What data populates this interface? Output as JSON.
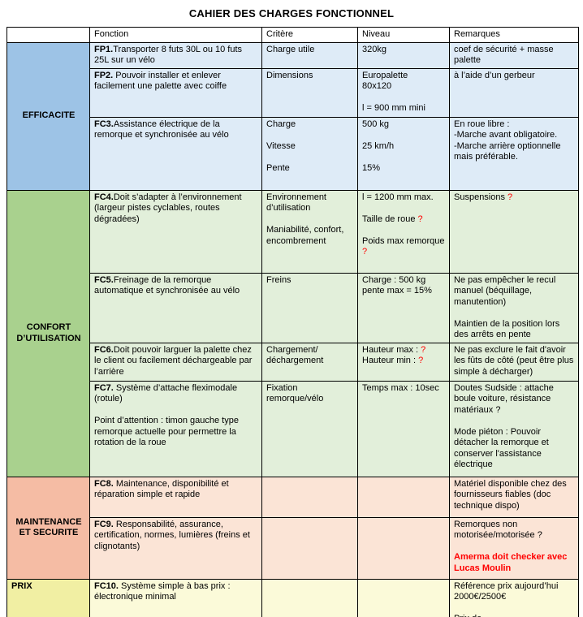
{
  "title": "CAHIER DES CHARGES FONCTIONNEL",
  "colors": {
    "alert_red": "#FF0000",
    "border": "#000000",
    "efficacite": {
      "category": "#9DC3E6",
      "cell": "#DEEBF7"
    },
    "confort": {
      "category": "#A9D18E",
      "cell": "#E2EFDA"
    },
    "maintenance": {
      "category": "#F5BCA4",
      "cell": "#FBE4D6"
    },
    "prix": {
      "category": "#F1EFA3",
      "cell": "#FBFAD9"
    }
  },
  "table": {
    "headers": [
      "",
      "Fonction",
      "Critère",
      "Niveau",
      "Remarques"
    ],
    "sections": [
      {
        "key": "efficacite",
        "category": "EFFICACITE",
        "rows": [
          {
            "fonction": [
              {
                "text": "FP1.",
                "bold": true
              },
              {
                "text": "Transporter 8 futs 30L ou 10 futs 25L sur un vélo"
              }
            ],
            "critere": [
              {
                "text": "Charge utile"
              }
            ],
            "niveau": [
              {
                "text": "320kg"
              }
            ],
            "remarques": [
              {
                "text": "coef de sécurité + masse palette"
              }
            ]
          },
          {
            "fonction": [
              {
                "text": "FP2.",
                "bold": true
              },
              {
                "text": " Pouvoir installer et enlever facilement une palette avec coiffe"
              }
            ],
            "critere": [
              {
                "text": "Dimensions"
              }
            ],
            "niveau": [
              {
                "text": "Europalette\n80x120\n\nl = 900 mm mini"
              }
            ],
            "remarques": [
              {
                "text": "à l’aide d’un gerbeur"
              }
            ]
          },
          {
            "fonction": [
              {
                "text": "FC3.",
                "bold": true
              },
              {
                "text": "Assistance électrique de la remorque et synchronisée au vélo"
              }
            ],
            "critere": [
              {
                "text": "Charge\n\nVitesse\n\nPente"
              }
            ],
            "niveau": [
              {
                "text": "500 kg\n\n25 km/h\n\n15%"
              }
            ],
            "remarques": [
              {
                "text": "En roue libre :\n-Marche avant obligatoire.\n-Marche arrière optionnelle mais préférable."
              }
            ]
          }
        ]
      },
      {
        "key": "confort",
        "category": "CONFORT D’UTILISATION",
        "rows": [
          {
            "fonction": [
              {
                "text": "FC4.",
                "bold": true
              },
              {
                "text": "Doit s’adapter à l’environnement (largeur pistes cyclables, routes dégradées)"
              }
            ],
            "critere": [
              {
                "text": "Environnement d’utilisation\n\nManiabilité, confort, encombrement"
              }
            ],
            "niveau": [
              {
                "text": "l = 1200 mm max.\n\nTaille de roue "
              },
              {
                "text": "?",
                "red": true
              },
              {
                "text": "\n\nPoids max remorque "
              },
              {
                "text": "?",
                "red": true
              }
            ],
            "remarques": [
              {
                "text": "Suspensions "
              },
              {
                "text": "?",
                "red": true
              }
            ]
          },
          {
            "fonction": [
              {
                "text": "FC5.",
                "bold": true
              },
              {
                "text": "Freinage de la remorque automatique et synchronisée au vélo"
              }
            ],
            "critere": [
              {
                "text": "Freins"
              }
            ],
            "niveau": [
              {
                "text": "Charge : 500 kg\npente max = 15%"
              }
            ],
            "remarques": [
              {
                "text": "Ne pas empêcher le recul manuel (béquillage, manutention)\n\nMaintien de la position lors des arrêts en pente"
              }
            ]
          },
          {
            "fonction": [
              {
                "text": "FC6.",
                "bold": true
              },
              {
                "text": "Doit pouvoir larguer la palette chez le client ou facilement déchargeable par l’arrière"
              }
            ],
            "critere": [
              {
                "text": "Chargement/\ndéchargement"
              }
            ],
            "niveau": [
              {
                "text": "Hauteur max : "
              },
              {
                "text": "?",
                "red": true
              },
              {
                "text": "\nHauteur min : "
              },
              {
                "text": "?",
                "red": true
              }
            ],
            "remarques": [
              {
                "text": "Ne pas exclure le fait d'avoir les fûts de côté (peut être plus simple à décharger)"
              }
            ]
          },
          {
            "fonction": [
              {
                "text": "FC7.",
                "bold": true
              },
              {
                "text": " Système d’attache fleximodale (rotule)\n\nPoint d’attention : timon gauche type remorque actuelle pour permettre la rotation de la roue"
              }
            ],
            "critere": [
              {
                "text": "Fixation remorque/vélo"
              }
            ],
            "niveau": [
              {
                "text": "Temps max : 10sec"
              }
            ],
            "remarques": [
              {
                "text": "Doutes Sudside : attache boule voiture, résistance matériaux ?\n\nMode piéton : Pouvoir détacher la remorque et conserver l'assistance électrique"
              }
            ]
          }
        ]
      },
      {
        "key": "maintenance",
        "category": "MAINTENANCE ET SECURITE",
        "rows": [
          {
            "fonction": [
              {
                "text": "FC8.",
                "bold": true
              },
              {
                "text": " Maintenance, disponibilité et réparation simple et rapide"
              }
            ],
            "critere": [],
            "niveau": [],
            "remarques": [
              {
                "text": "Matériel disponible chez des fournisseurs fiables (doc technique dispo)"
              }
            ]
          },
          {
            "fonction": [
              {
                "text": "FC9.",
                "bold": true
              },
              {
                "text": " Responsabilité, assurance, certification, normes, lumières (freins et clignotants)"
              }
            ],
            "critere": [],
            "niveau": [],
            "remarques": [
              {
                "text": "Remorques non motorisée/motorisée ?\n\n"
              },
              {
                "text": "Amerma doit checker avec Lucas Moulin",
                "bold": true,
                "red": true
              }
            ]
          }
        ]
      },
      {
        "key": "prix",
        "category": "PRIX",
        "rows": [
          {
            "fonction": [
              {
                "text": "FC10.",
                "bold": true
              },
              {
                "text": " Système simple à bas prix :\nélectronique minimal"
              }
            ],
            "critere": [],
            "niveau": [],
            "remarques": [
              {
                "text": "Référence prix aujourd’hui 2000€/2500€\n\nPrix de"
              }
            ]
          }
        ]
      }
    ]
  }
}
